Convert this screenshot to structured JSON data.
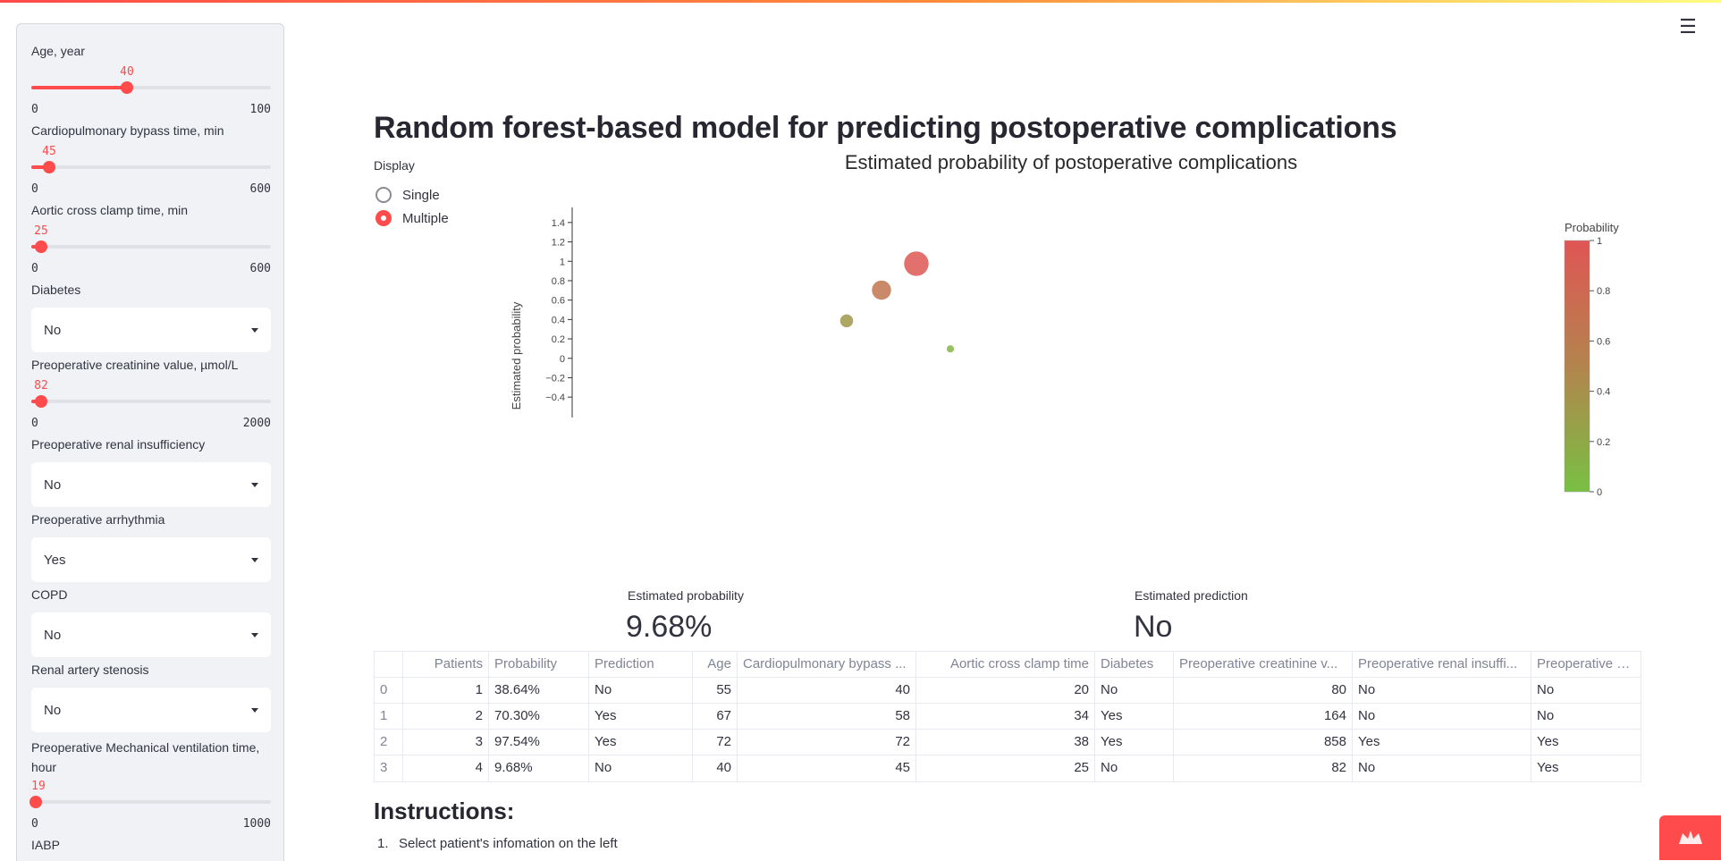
{
  "app": {
    "menu_icon": "hamburger-menu-icon"
  },
  "sidebar": {
    "sliders": [
      {
        "label": "Age, year",
        "value": "40",
        "min": "0",
        "max": "100",
        "fraction": 0.4
      },
      {
        "label": "Cardiopulmonary bypass time, min",
        "value": "45",
        "min": "0",
        "max": "600",
        "fraction": 0.075
      },
      {
        "label": "Aortic cross clamp time, min",
        "value": "25",
        "min": "0",
        "max": "600",
        "fraction": 0.0417
      },
      {
        "label": "Preoperative creatinine value, µmol/L",
        "value": "82",
        "min": "0",
        "max": "2000",
        "fraction": 0.041
      },
      {
        "label": "Preoperative Mechanical ventilation time, hour",
        "value": "19",
        "min": "0",
        "max": "1000",
        "fraction": 0.019
      }
    ],
    "selects": [
      {
        "label": "Diabetes",
        "value": "No"
      },
      {
        "label": "Preoperative renal insufficiency",
        "value": "No"
      },
      {
        "label": "Preoperative arrhythmia",
        "value": "Yes"
      },
      {
        "label": "COPD",
        "value": "No"
      },
      {
        "label": "Renal artery stenosis",
        "value": "No"
      }
    ],
    "last_label": "IABP"
  },
  "main": {
    "title": "Random forest-based model for predicting postoperative complications",
    "display": {
      "label": "Display",
      "options": [
        "Single",
        "Multiple"
      ],
      "selected": "Multiple"
    },
    "metrics": {
      "probability_label": "Estimated probability",
      "probability_value": "9.68%",
      "prediction_label": "Estimated prediction",
      "prediction_value": "No"
    },
    "table": {
      "headers": [
        "",
        "Patients",
        "Probability",
        "Prediction",
        "Age",
        "Cardiopulmonary bypass ...",
        "Aortic cross clamp time",
        "Diabetes",
        "Preoperative creatinine v...",
        "Preoperative renal insuffi...",
        "Preoperative arrhyth"
      ],
      "rows": [
        [
          "0",
          "1",
          "38.64%",
          "No",
          "55",
          "40",
          "20",
          "No",
          "80",
          "No",
          "No"
        ],
        [
          "1",
          "2",
          "70.30%",
          "Yes",
          "67",
          "58",
          "34",
          "Yes",
          "164",
          "No",
          "No"
        ],
        [
          "2",
          "3",
          "97.54%",
          "Yes",
          "72",
          "72",
          "38",
          "Yes",
          "858",
          "Yes",
          "Yes"
        ],
        [
          "3",
          "4",
          "9.68%",
          "No",
          "40",
          "45",
          "25",
          "No",
          "82",
          "No",
          "Yes"
        ]
      ]
    },
    "instructions": {
      "title": "Instructions:",
      "items": [
        {
          "num": "1.",
          "text": "Select patient's infomation on the left"
        }
      ]
    }
  },
  "chart_data": {
    "type": "scatter",
    "title": "Estimated probability of postoperative complications",
    "ylabel": "Estimated probability",
    "xlabel": "",
    "ylim": [
      -0.5,
      1.5
    ],
    "y_ticks": [
      "1.4",
      "1.2",
      "1",
      "0.8",
      "0.6",
      "0.4",
      "0.2",
      "0",
      "−0.2",
      "−0.4"
    ],
    "x": [
      1,
      2,
      3,
      4
    ],
    "y": [
      0.3864,
      0.703,
      0.9754,
      0.0968
    ],
    "colorbar": {
      "title": "Probability",
      "ticks": [
        "1",
        "0.8",
        "0.6",
        "0.4",
        "0.2",
        "0"
      ],
      "colors": [
        "#e05555",
        "#78c043"
      ]
    }
  },
  "colors": {
    "accent": "#ff4b4b",
    "badge": "#ff4b4b"
  }
}
